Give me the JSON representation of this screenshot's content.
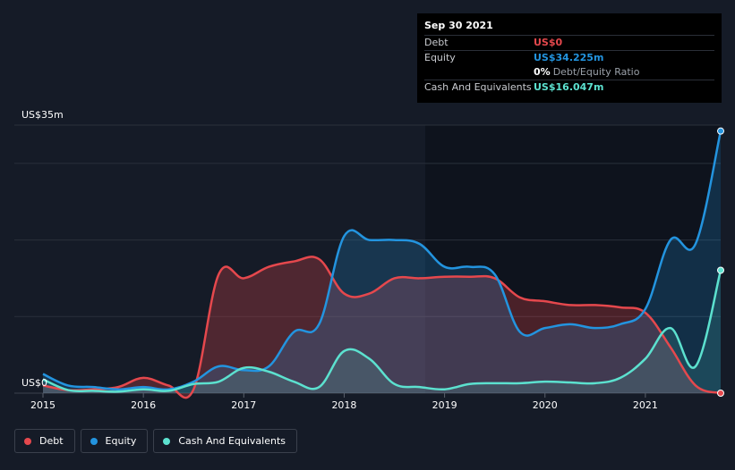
{
  "tooltip": {
    "date": "Sep 30 2021",
    "rows": [
      {
        "label": "Debt",
        "value": "US$0",
        "color": "#e5484d"
      },
      {
        "label": "Equity",
        "value": "US$34.225m",
        "color": "#2394df"
      },
      {
        "label": "",
        "value": "0%",
        "extra": "Debt/Equity Ratio",
        "color": "#ffffff"
      },
      {
        "label": "Cash And Equivalents",
        "value": "US$16.047m",
        "color": "#5ce1cf"
      }
    ]
  },
  "legend": [
    {
      "label": "Debt",
      "color": "#e5484d"
    },
    {
      "label": "Equity",
      "color": "#2394df"
    },
    {
      "label": "Cash And Equivalents",
      "color": "#5ce1cf"
    }
  ],
  "chart_data": {
    "type": "area",
    "title": "",
    "y_top_label": "US$35m",
    "y_bottom_label": "US$0",
    "ylim": [
      0,
      35
    ],
    "xlim": [
      2015.0,
      2021.75
    ],
    "x_ticks": [
      2015,
      2016,
      2017,
      2018,
      2019,
      2020,
      2021
    ],
    "x_tick_labels": [
      "2015",
      "2016",
      "2017",
      "2018",
      "2019",
      "2020",
      "2021"
    ],
    "y_gridlines": [
      0,
      10,
      20,
      30,
      35
    ],
    "series": [
      {
        "name": "Debt",
        "color": "#e5484d",
        "points": [
          [
            2015.0,
            1.0
          ],
          [
            2015.25,
            0.4
          ],
          [
            2015.5,
            0.5
          ],
          [
            2015.75,
            0.8
          ],
          [
            2016.0,
            2.0
          ],
          [
            2016.25,
            1.0
          ],
          [
            2016.5,
            0.5
          ],
          [
            2016.75,
            15.5
          ],
          [
            2017.0,
            15.0
          ],
          [
            2017.25,
            16.5
          ],
          [
            2017.5,
            17.2
          ],
          [
            2017.75,
            17.5
          ],
          [
            2018.0,
            13.0
          ],
          [
            2018.25,
            13.0
          ],
          [
            2018.5,
            15.0
          ],
          [
            2018.75,
            15.0
          ],
          [
            2019.0,
            15.2
          ],
          [
            2019.25,
            15.2
          ],
          [
            2019.5,
            15.0
          ],
          [
            2019.75,
            12.5
          ],
          [
            2020.0,
            12.0
          ],
          [
            2020.25,
            11.5
          ],
          [
            2020.5,
            11.5
          ],
          [
            2020.75,
            11.2
          ],
          [
            2021.0,
            10.5
          ],
          [
            2021.25,
            6.0
          ],
          [
            2021.5,
            1.0
          ],
          [
            2021.75,
            0.0
          ]
        ]
      },
      {
        "name": "Equity",
        "color": "#2394df",
        "points": [
          [
            2015.0,
            2.5
          ],
          [
            2015.25,
            1.0
          ],
          [
            2015.5,
            0.8
          ],
          [
            2015.75,
            0.5
          ],
          [
            2016.0,
            0.8
          ],
          [
            2016.25,
            0.5
          ],
          [
            2016.5,
            1.5
          ],
          [
            2016.75,
            3.5
          ],
          [
            2017.0,
            3.0
          ],
          [
            2017.25,
            3.5
          ],
          [
            2017.5,
            8.0
          ],
          [
            2017.75,
            9.0
          ],
          [
            2018.0,
            20.5
          ],
          [
            2018.25,
            20.0
          ],
          [
            2018.5,
            20.0
          ],
          [
            2018.75,
            19.5
          ],
          [
            2019.0,
            16.5
          ],
          [
            2019.25,
            16.5
          ],
          [
            2019.5,
            15.5
          ],
          [
            2019.75,
            8.0
          ],
          [
            2020.0,
            8.5
          ],
          [
            2020.25,
            9.0
          ],
          [
            2020.5,
            8.5
          ],
          [
            2020.75,
            9.0
          ],
          [
            2021.0,
            11.0
          ],
          [
            2021.25,
            20.0
          ],
          [
            2021.5,
            19.5
          ],
          [
            2021.75,
            34.225
          ]
        ]
      },
      {
        "name": "Cash And Equivalents",
        "color": "#5ce1cf",
        "points": [
          [
            2015.0,
            1.8
          ],
          [
            2015.25,
            0.4
          ],
          [
            2015.5,
            0.3
          ],
          [
            2015.75,
            0.2
          ],
          [
            2016.0,
            0.5
          ],
          [
            2016.25,
            0.3
          ],
          [
            2016.5,
            1.2
          ],
          [
            2016.75,
            1.5
          ],
          [
            2017.0,
            3.3
          ],
          [
            2017.25,
            2.8
          ],
          [
            2017.5,
            1.5
          ],
          [
            2017.75,
            0.8
          ],
          [
            2018.0,
            5.5
          ],
          [
            2018.25,
            4.5
          ],
          [
            2018.5,
            1.2
          ],
          [
            2018.75,
            0.8
          ],
          [
            2019.0,
            0.5
          ],
          [
            2019.25,
            1.2
          ],
          [
            2019.5,
            1.3
          ],
          [
            2019.75,
            1.3
          ],
          [
            2020.0,
            1.5
          ],
          [
            2020.25,
            1.4
          ],
          [
            2020.5,
            1.3
          ],
          [
            2020.75,
            2.0
          ],
          [
            2021.0,
            4.5
          ],
          [
            2021.25,
            8.5
          ],
          [
            2021.5,
            3.5
          ],
          [
            2021.75,
            16.047
          ]
        ]
      }
    ]
  }
}
